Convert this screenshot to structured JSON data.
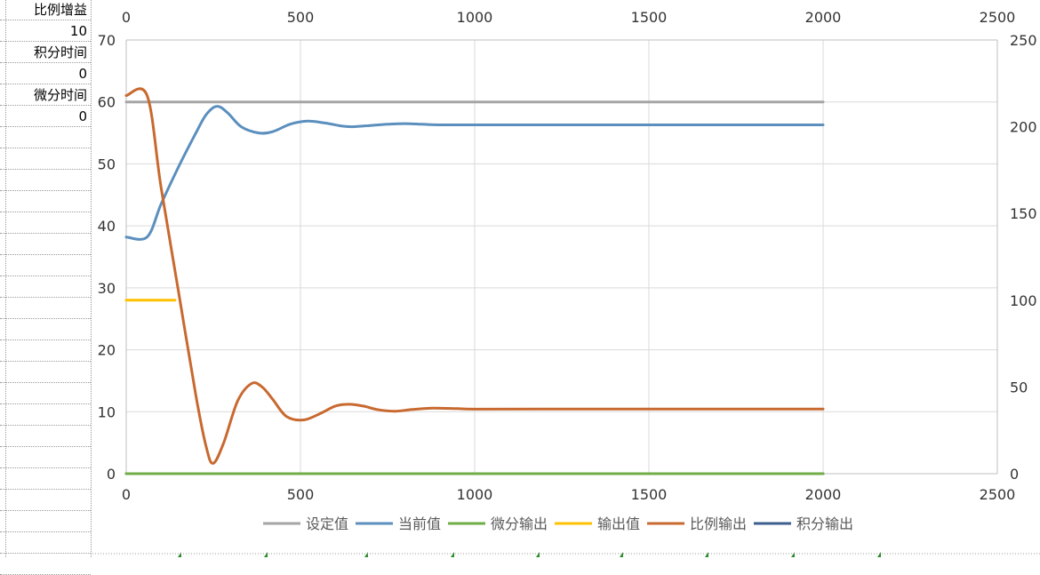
{
  "sheet": {
    "cells": [
      {
        "label": "比例增益",
        "value": "10"
      },
      {
        "label": "积分时间",
        "value": "0"
      },
      {
        "label": "微分时间",
        "value": "0"
      }
    ]
  },
  "chart_data": {
    "type": "line",
    "title": "",
    "x_bottom": {
      "min": 0,
      "max": 2500,
      "ticks": [
        "0",
        "500",
        "1000",
        "1500",
        "2000",
        "2500"
      ]
    },
    "x_top": {
      "min": 0,
      "max": 2500,
      "ticks": [
        "0",
        "500",
        "1000",
        "1500",
        "2000",
        "2500"
      ]
    },
    "y_left": {
      "min": 0,
      "max": 70,
      "ticks": [
        "0",
        "10",
        "20",
        "30",
        "40",
        "50",
        "60",
        "70"
      ]
    },
    "y_right": {
      "min": 0,
      "max": 250,
      "ticks": [
        "0",
        "50",
        "100",
        "150",
        "200",
        "250"
      ]
    },
    "grid": true,
    "legend_position": "bottom",
    "series": [
      {
        "name": "设定值",
        "color": "#a5a5a5",
        "axis": "left",
        "x": [
          0,
          2000
        ],
        "y": [
          60,
          60
        ]
      },
      {
        "name": "当前值",
        "color": "#5b8fbd",
        "axis": "left",
        "x": [
          0,
          60,
          100,
          150,
          200,
          230,
          260,
          290,
          330,
          380,
          420,
          470,
          520,
          570,
          620,
          650,
          700,
          750,
          800,
          850,
          900,
          1000,
          1200,
          1500,
          2000
        ],
        "y": [
          38.2,
          38.2,
          43.5,
          49.5,
          55,
          58,
          59.3,
          58.3,
          56,
          55,
          55.2,
          56.4,
          56.9,
          56.6,
          56.1,
          56.0,
          56.2,
          56.4,
          56.5,
          56.4,
          56.3,
          56.3,
          56.3,
          56.3,
          56.3
        ]
      },
      {
        "name": "微分输出",
        "color": "#70ad47",
        "axis": "left",
        "x": [
          0,
          2000
        ],
        "y": [
          0,
          0
        ]
      },
      {
        "name": "输出值",
        "color": "#ffc000",
        "axis": "left",
        "x": [
          0,
          140
        ],
        "y": [
          28,
          28
        ]
      },
      {
        "name": "比例输出",
        "color": "#c8692f",
        "axis": "right",
        "x": [
          0,
          60,
          100,
          150,
          200,
          230,
          250,
          280,
          320,
          360,
          390,
          420,
          460,
          510,
          560,
          600,
          640,
          680,
          720,
          770,
          820,
          880,
          950,
          1000,
          1200,
          1500,
          2000
        ],
        "y": [
          218,
          218,
          165,
          105,
          45,
          15,
          6,
          18,
          42,
          52,
          50,
          43,
          33,
          31,
          35,
          39,
          40,
          39,
          37,
          36,
          37,
          37.8,
          37.5,
          37.2,
          37.3,
          37.3,
          37.3
        ]
      },
      {
        "name": "积分输出",
        "color": "#3d5f8e",
        "axis": "left",
        "x": [
          0,
          2000
        ],
        "y": [
          0,
          0
        ]
      }
    ]
  }
}
